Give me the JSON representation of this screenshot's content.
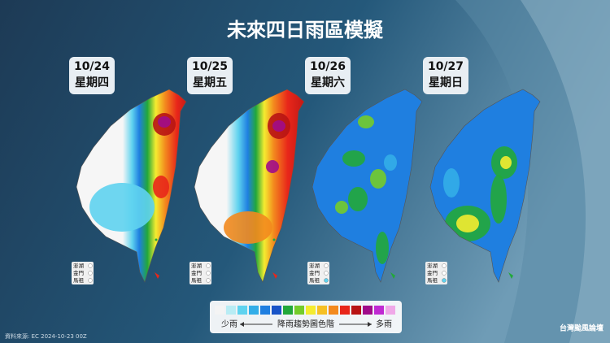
{
  "header": {
    "title": "未來四日雨區模擬"
  },
  "panels": [
    {
      "date": "10/24",
      "weekday": "星期四",
      "islands": [
        "澎湖",
        "金門",
        "馬祖"
      ]
    },
    {
      "date": "10/25",
      "weekday": "星期五",
      "islands": [
        "澎湖",
        "金門",
        "馬祖"
      ]
    },
    {
      "date": "10/26",
      "weekday": "星期六",
      "islands": [
        "澎湖",
        "金門",
        "馬祖"
      ]
    },
    {
      "date": "10/27",
      "weekday": "星期日",
      "islands": [
        "澎湖",
        "金門",
        "馬祖"
      ]
    }
  ],
  "legend": {
    "low_label": "少雨",
    "title": "降雨趨勢圖色階",
    "high_label": "多雨",
    "colors": [
      "#f4f4f4",
      "#b8ecf4",
      "#5fd3ef",
      "#33aee8",
      "#1f7fe0",
      "#1a55c8",
      "#22a83a",
      "#74cc2a",
      "#f4ec30",
      "#f6c024",
      "#f38a1e",
      "#e8261a",
      "#b81414",
      "#a00c8a",
      "#c02ad2",
      "#f0a8e8"
    ]
  },
  "footer": {
    "source": "資料來源: EC 2024-10-23 00Z",
    "logo": "台灣颱風論壇"
  }
}
